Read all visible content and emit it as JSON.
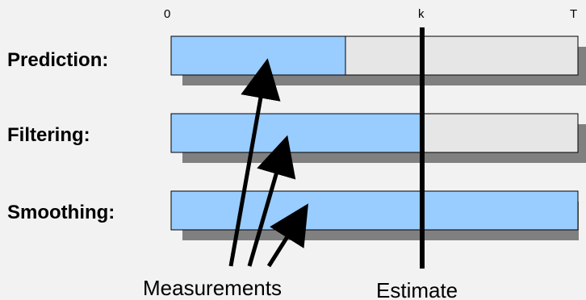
{
  "axis": {
    "start_label": "0",
    "current_label": "k",
    "end_label": "T"
  },
  "rows": [
    {
      "label": "Prediction:",
      "measured_until": "prediction"
    },
    {
      "label": "Filtering:",
      "measured_until": "k"
    },
    {
      "label": "Smoothing:",
      "measured_until": "T"
    }
  ],
  "captions": {
    "measurements": "Measurements",
    "estimate": "Estimate"
  },
  "colors": {
    "background": "#f2f2f2",
    "measured": "#99ccff",
    "unmeasured": "#e6e6e6",
    "shadow": "#808080",
    "outline": "#000000"
  }
}
